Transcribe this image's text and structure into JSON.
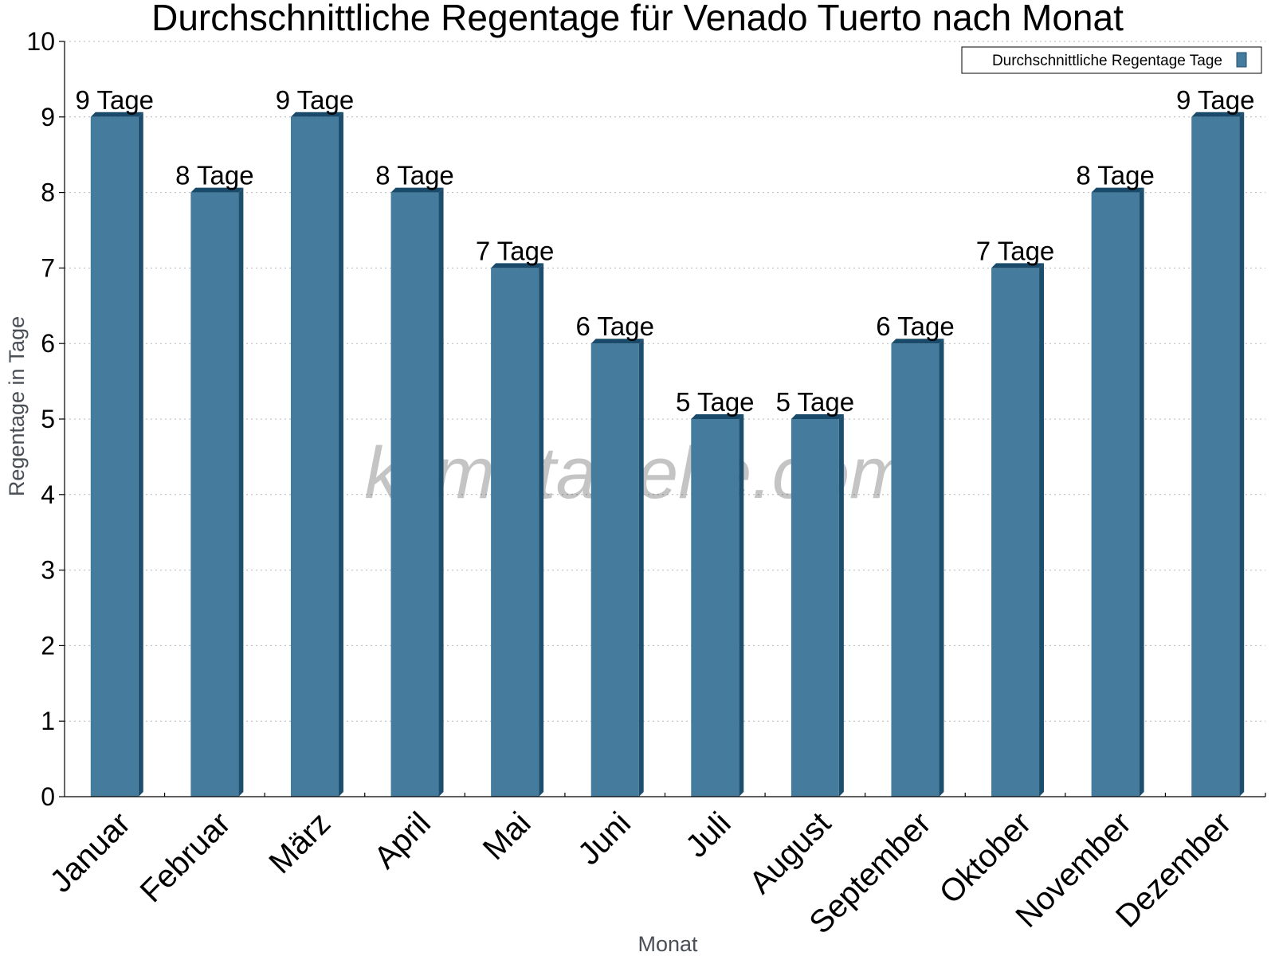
{
  "chart_data": {
    "type": "bar",
    "title": "Durchschnittliche Regentage für Venado Tuerto nach Monat",
    "xlabel": "Monat",
    "ylabel": "Regentage in Tage",
    "ylim": [
      0,
      10
    ],
    "y_ticks": [
      "0",
      "1",
      "2",
      "3",
      "4",
      "5",
      "6",
      "7",
      "8",
      "9",
      "10"
    ],
    "categories": [
      "Januar",
      "Februar",
      "März",
      "April",
      "Mai",
      "Juni",
      "Juli",
      "August",
      "September",
      "Oktober",
      "November",
      "Dezember"
    ],
    "series": [
      {
        "name": "Durchschnittliche Regentage Tage",
        "values": [
          9,
          8,
          9,
          8,
          7,
          6,
          5,
          5,
          6,
          7,
          8,
          9
        ],
        "value_labels": [
          "9 Tage",
          "8 Tage",
          "9 Tage",
          "8 Tage",
          "7 Tage",
          "6 Tage",
          "5 Tage",
          "5 Tage",
          "6 Tage",
          "7 Tage",
          "8 Tage",
          "9 Tage"
        ],
        "color": "#457b9d",
        "side_color": "#1d4e6e",
        "top_color": "#1a4a6a"
      }
    ],
    "grid": true,
    "legend_position": "top-right"
  },
  "watermark": "klimatabelle.com"
}
